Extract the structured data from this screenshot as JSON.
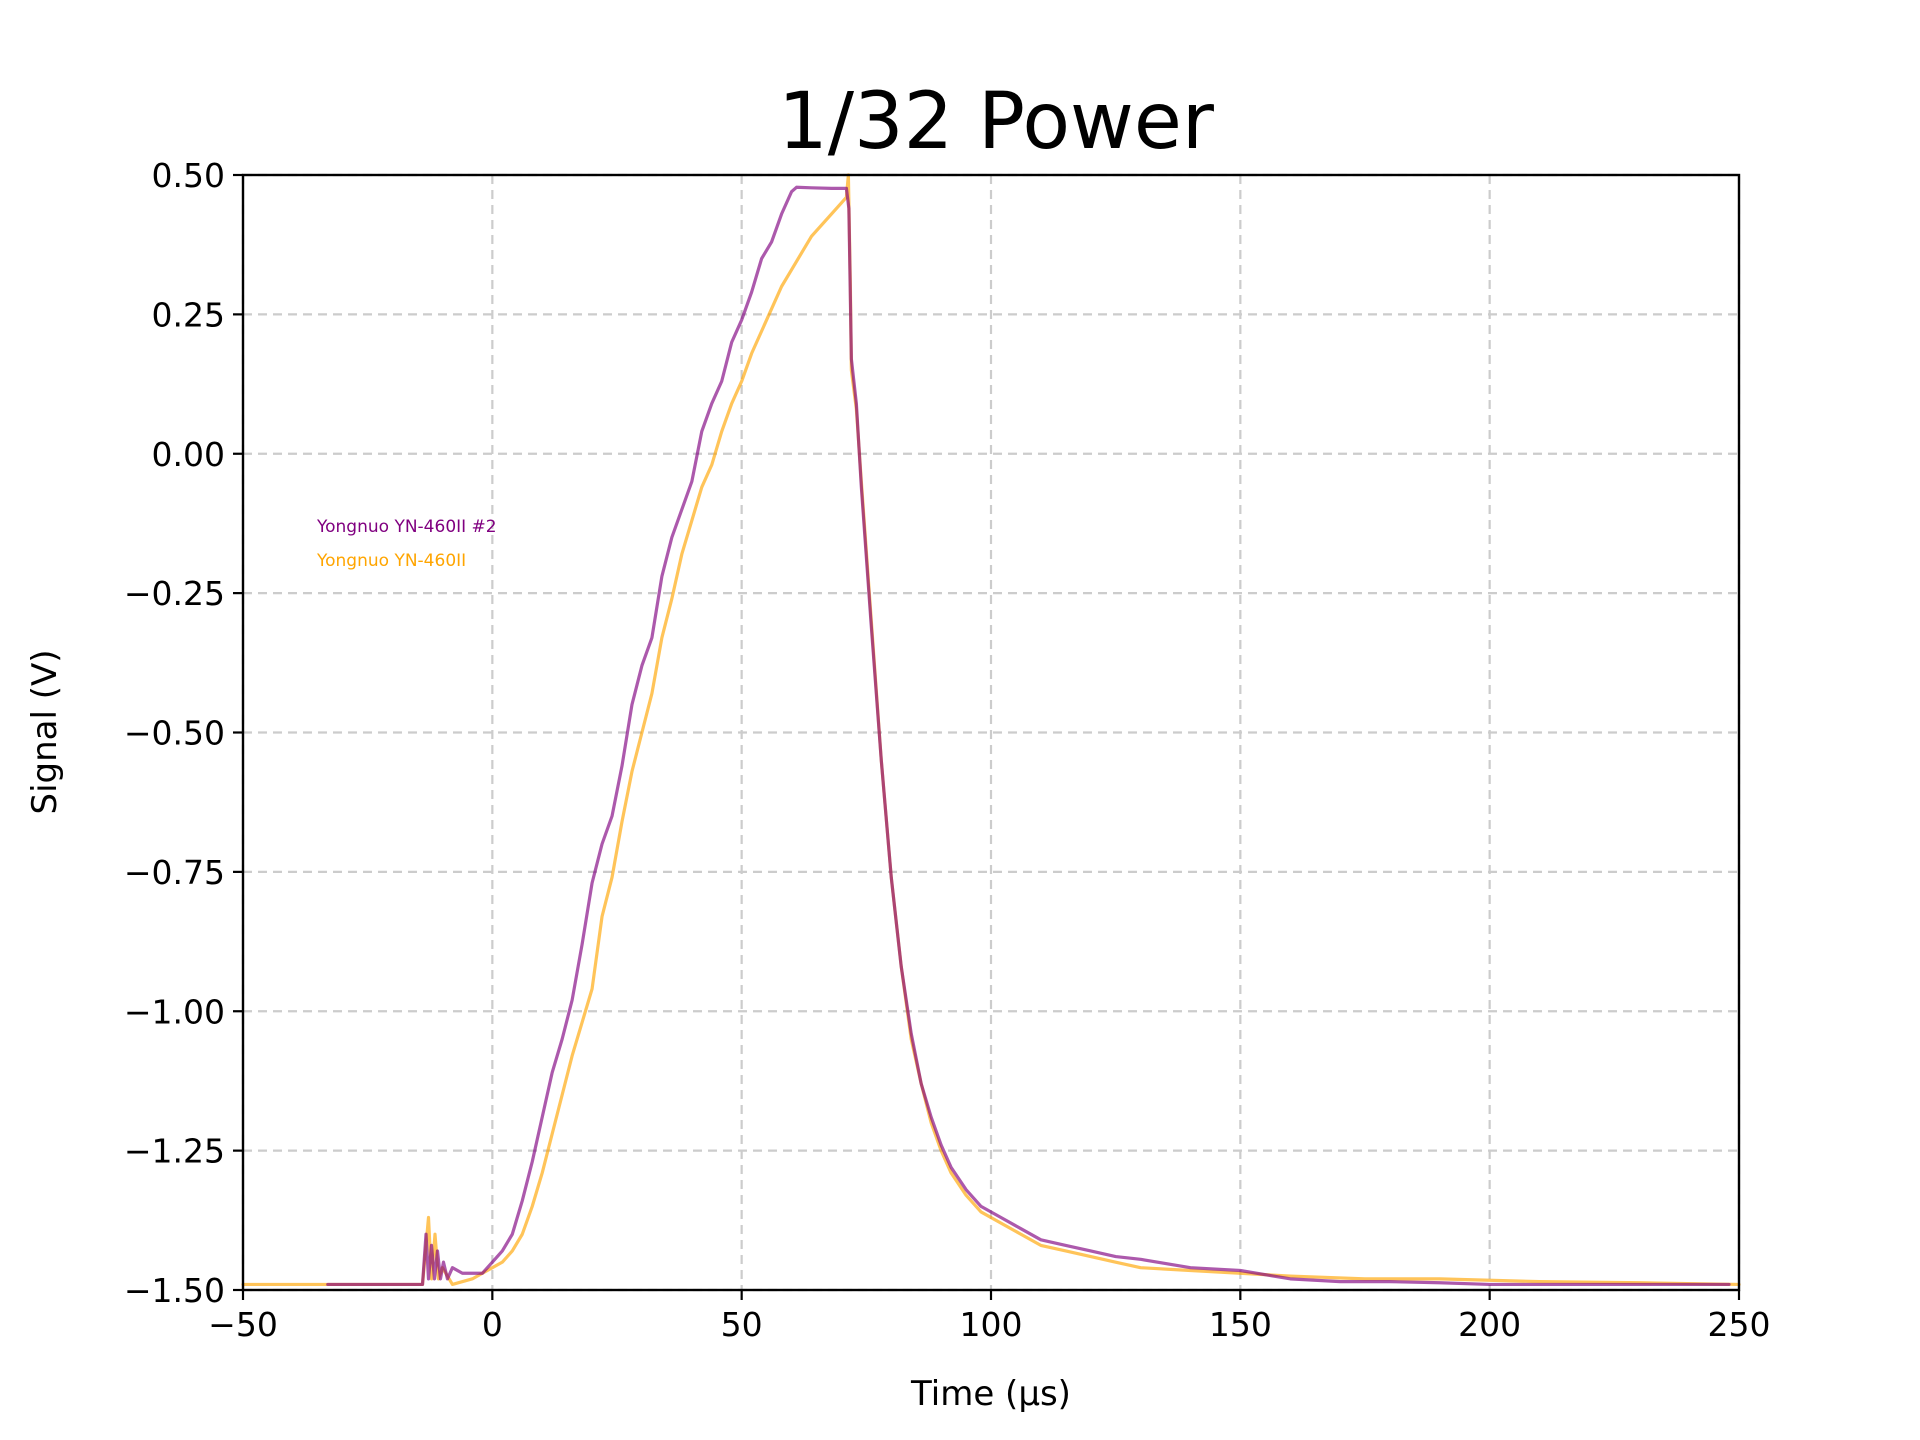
{
  "chart_data": {
    "type": "line",
    "title": "1/32 Power",
    "xlabel": "Time (µs)",
    "ylabel": "Signal (V)",
    "xlim": [
      -50,
      250
    ],
    "ylim": [
      -1.5,
      0.5
    ],
    "xticks": [
      -50,
      0,
      50,
      100,
      150,
      200,
      250
    ],
    "xtick_labels": [
      "−50",
      "0",
      "50",
      "100",
      "150",
      "200",
      "250"
    ],
    "yticks": [
      -1.5,
      -1.25,
      -1.0,
      -0.75,
      -0.5,
      -0.25,
      0.0,
      0.25,
      0.5
    ],
    "ytick_labels": [
      "−1.50",
      "−1.25",
      "−1.00",
      "−0.75",
      "−0.50",
      "−0.25",
      "0.00",
      "0.25",
      "0.50"
    ],
    "grid": true,
    "legend_position": "upper-left",
    "series": [
      {
        "name": "Yongnuo YN-460II #2",
        "color": "#800080",
        "opacity": 0.65,
        "points": [
          [
            -33,
            -1.49
          ],
          [
            -20,
            -1.49
          ],
          [
            -14,
            -1.49
          ],
          [
            -13.3,
            -1.4
          ],
          [
            -12.8,
            -1.48
          ],
          [
            -12.2,
            -1.42
          ],
          [
            -11.6,
            -1.48
          ],
          [
            -11,
            -1.43
          ],
          [
            -10.4,
            -1.48
          ],
          [
            -9.8,
            -1.45
          ],
          [
            -9,
            -1.48
          ],
          [
            -8,
            -1.46
          ],
          [
            -6,
            -1.47
          ],
          [
            -4,
            -1.47
          ],
          [
            -2,
            -1.47
          ],
          [
            0,
            -1.45
          ],
          [
            2,
            -1.43
          ],
          [
            4,
            -1.4
          ],
          [
            6,
            -1.34
          ],
          [
            8,
            -1.27
          ],
          [
            10,
            -1.19
          ],
          [
            12,
            -1.11
          ],
          [
            14,
            -1.05
          ],
          [
            16,
            -0.98
          ],
          [
            18,
            -0.88
          ],
          [
            20,
            -0.77
          ],
          [
            22,
            -0.7
          ],
          [
            24,
            -0.65
          ],
          [
            26,
            -0.56
          ],
          [
            28,
            -0.45
          ],
          [
            30,
            -0.38
          ],
          [
            32,
            -0.33
          ],
          [
            34,
            -0.22
          ],
          [
            36,
            -0.15
          ],
          [
            38,
            -0.1
          ],
          [
            40,
            -0.05
          ],
          [
            42,
            0.04
          ],
          [
            44,
            0.09
          ],
          [
            46,
            0.13
          ],
          [
            48,
            0.2
          ],
          [
            50,
            0.24
          ],
          [
            52,
            0.29
          ],
          [
            54,
            0.35
          ],
          [
            56,
            0.38
          ],
          [
            58,
            0.43
          ],
          [
            60,
            0.47
          ],
          [
            61,
            0.478
          ],
          [
            64,
            0.477
          ],
          [
            68,
            0.476
          ],
          [
            71,
            0.476
          ],
          [
            71.5,
            0.44
          ],
          [
            72,
            0.17
          ],
          [
            73,
            0.09
          ],
          [
            74,
            -0.06
          ],
          [
            76,
            -0.31
          ],
          [
            78,
            -0.55
          ],
          [
            80,
            -0.76
          ],
          [
            82,
            -0.92
          ],
          [
            84,
            -1.04
          ],
          [
            86,
            -1.13
          ],
          [
            88,
            -1.19
          ],
          [
            90,
            -1.24
          ],
          [
            92,
            -1.28
          ],
          [
            95,
            -1.32
          ],
          [
            98,
            -1.35
          ],
          [
            102,
            -1.37
          ],
          [
            106,
            -1.39
          ],
          [
            110,
            -1.41
          ],
          [
            115,
            -1.42
          ],
          [
            120,
            -1.43
          ],
          [
            125,
            -1.44
          ],
          [
            130,
            -1.445
          ],
          [
            140,
            -1.46
          ],
          [
            150,
            -1.465
          ],
          [
            160,
            -1.48
          ],
          [
            170,
            -1.485
          ],
          [
            180,
            -1.485
          ],
          [
            190,
            -1.487
          ],
          [
            200,
            -1.49
          ],
          [
            215,
            -1.49
          ],
          [
            230,
            -1.49
          ],
          [
            248,
            -1.49
          ]
        ]
      },
      {
        "name": "Yongnuo YN-460II",
        "color": "#ffa500",
        "opacity": 0.65,
        "points": [
          [
            -50,
            -1.49
          ],
          [
            -40,
            -1.49
          ],
          [
            -30,
            -1.49
          ],
          [
            -20,
            -1.49
          ],
          [
            -14,
            -1.49
          ],
          [
            -12.8,
            -1.37
          ],
          [
            -12.2,
            -1.48
          ],
          [
            -11.5,
            -1.4
          ],
          [
            -10.8,
            -1.48
          ],
          [
            -10,
            -1.46
          ],
          [
            -8,
            -1.49
          ],
          [
            -4,
            -1.48
          ],
          [
            -2,
            -1.47
          ],
          [
            0,
            -1.46
          ],
          [
            2,
            -1.45
          ],
          [
            4,
            -1.43
          ],
          [
            6,
            -1.4
          ],
          [
            8,
            -1.35
          ],
          [
            10,
            -1.29
          ],
          [
            12,
            -1.22
          ],
          [
            14,
            -1.15
          ],
          [
            16,
            -1.08
          ],
          [
            18,
            -1.02
          ],
          [
            20,
            -0.96
          ],
          [
            22,
            -0.83
          ],
          [
            24,
            -0.76
          ],
          [
            26,
            -0.66
          ],
          [
            28,
            -0.57
          ],
          [
            30,
            -0.5
          ],
          [
            32,
            -0.43
          ],
          [
            34,
            -0.33
          ],
          [
            36,
            -0.26
          ],
          [
            38,
            -0.18
          ],
          [
            40,
            -0.12
          ],
          [
            42,
            -0.06
          ],
          [
            44,
            -0.02
          ],
          [
            46,
            0.04
          ],
          [
            48,
            0.09
          ],
          [
            50,
            0.13
          ],
          [
            52,
            0.18
          ],
          [
            54,
            0.22
          ],
          [
            56,
            0.26
          ],
          [
            58,
            0.3
          ],
          [
            60,
            0.33
          ],
          [
            62,
            0.36
          ],
          [
            64,
            0.39
          ],
          [
            66,
            0.41
          ],
          [
            68,
            0.43
          ],
          [
            70,
            0.45
          ],
          [
            71,
            0.46
          ],
          [
            71.4,
            0.5
          ],
          [
            71.8,
            0.3
          ],
          [
            72,
            0.15
          ],
          [
            73,
            0.08
          ],
          [
            74,
            -0.05
          ],
          [
            76,
            -0.3
          ],
          [
            78,
            -0.55
          ],
          [
            80,
            -0.76
          ],
          [
            82,
            -0.92
          ],
          [
            84,
            -1.05
          ],
          [
            86,
            -1.13
          ],
          [
            88,
            -1.2
          ],
          [
            90,
            -1.25
          ],
          [
            92,
            -1.29
          ],
          [
            95,
            -1.33
          ],
          [
            98,
            -1.36
          ],
          [
            102,
            -1.38
          ],
          [
            106,
            -1.4
          ],
          [
            110,
            -1.42
          ],
          [
            115,
            -1.43
          ],
          [
            120,
            -1.44
          ],
          [
            125,
            -1.45
          ],
          [
            130,
            -1.46
          ],
          [
            140,
            -1.465
          ],
          [
            150,
            -1.47
          ],
          [
            160,
            -1.475
          ],
          [
            175,
            -1.48
          ],
          [
            190,
            -1.48
          ],
          [
            210,
            -1.485
          ],
          [
            230,
            -1.487
          ],
          [
            250,
            -1.49
          ]
        ]
      }
    ]
  }
}
